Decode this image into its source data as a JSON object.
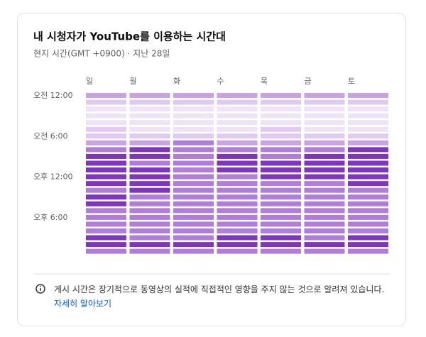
{
  "chart_data": {
    "type": "heatmap",
    "title": "내 시청자가 YouTube를 이용하는 시간대",
    "subtitle": "현지 시간(GMT +0900) · 지난 28일",
    "hours": [
      "오전 12:00",
      null,
      null,
      null,
      null,
      null,
      "오전 6:00",
      null,
      null,
      null,
      null,
      null,
      "오후 12:00",
      null,
      null,
      null,
      null,
      null,
      "오후 6:00",
      null,
      null,
      null,
      null,
      null
    ],
    "colors": [
      "#efe4f7",
      "#e0caf0",
      "#c9a3e4",
      "#b07dd8",
      "#7f36bf"
    ],
    "series": [
      {
        "name": "일",
        "values": [
          2,
          1,
          0,
          0,
          0,
          1,
          1,
          2,
          3,
          4,
          4,
          4,
          4,
          4,
          3,
          4,
          4,
          3,
          3,
          3,
          3,
          4,
          4,
          3
        ]
      },
      {
        "name": "월",
        "values": [
          2,
          1,
          0,
          0,
          0,
          0,
          1,
          2,
          4,
          4,
          3,
          4,
          4,
          4,
          4,
          3,
          3,
          3,
          3,
          3,
          3,
          3,
          4,
          3
        ]
      },
      {
        "name": "화",
        "values": [
          2,
          1,
          0,
          0,
          0,
          0,
          1,
          3,
          3,
          3,
          3,
          3,
          3,
          3,
          3,
          3,
          3,
          3,
          3,
          3,
          3,
          3,
          4,
          3
        ]
      },
      {
        "name": "수",
        "values": [
          2,
          1,
          0,
          0,
          0,
          0,
          1,
          2,
          3,
          4,
          4,
          4,
          3,
          3,
          3,
          3,
          3,
          3,
          3,
          3,
          3,
          4,
          4,
          3
        ]
      },
      {
        "name": "목",
        "values": [
          2,
          1,
          0,
          0,
          0,
          1,
          1,
          2,
          3,
          3,
          4,
          4,
          4,
          3,
          3,
          3,
          3,
          3,
          3,
          3,
          3,
          4,
          4,
          3
        ]
      },
      {
        "name": "금",
        "values": [
          2,
          1,
          0,
          0,
          0,
          0,
          1,
          2,
          3,
          4,
          4,
          4,
          4,
          3,
          3,
          3,
          3,
          3,
          3,
          3,
          3,
          3,
          4,
          3
        ]
      },
      {
        "name": "토",
        "values": [
          2,
          1,
          0,
          0,
          0,
          0,
          1,
          2,
          4,
          4,
          4,
          4,
          4,
          4,
          3,
          3,
          3,
          3,
          3,
          3,
          3,
          4,
          4,
          3
        ]
      }
    ]
  },
  "footer": {
    "note": "게시 시간은 장기적으로 동영상의 실적에 직접적인 영향을 주지 않는 것으로 알려져 있습니다.",
    "link": "자세히 알아보기"
  }
}
